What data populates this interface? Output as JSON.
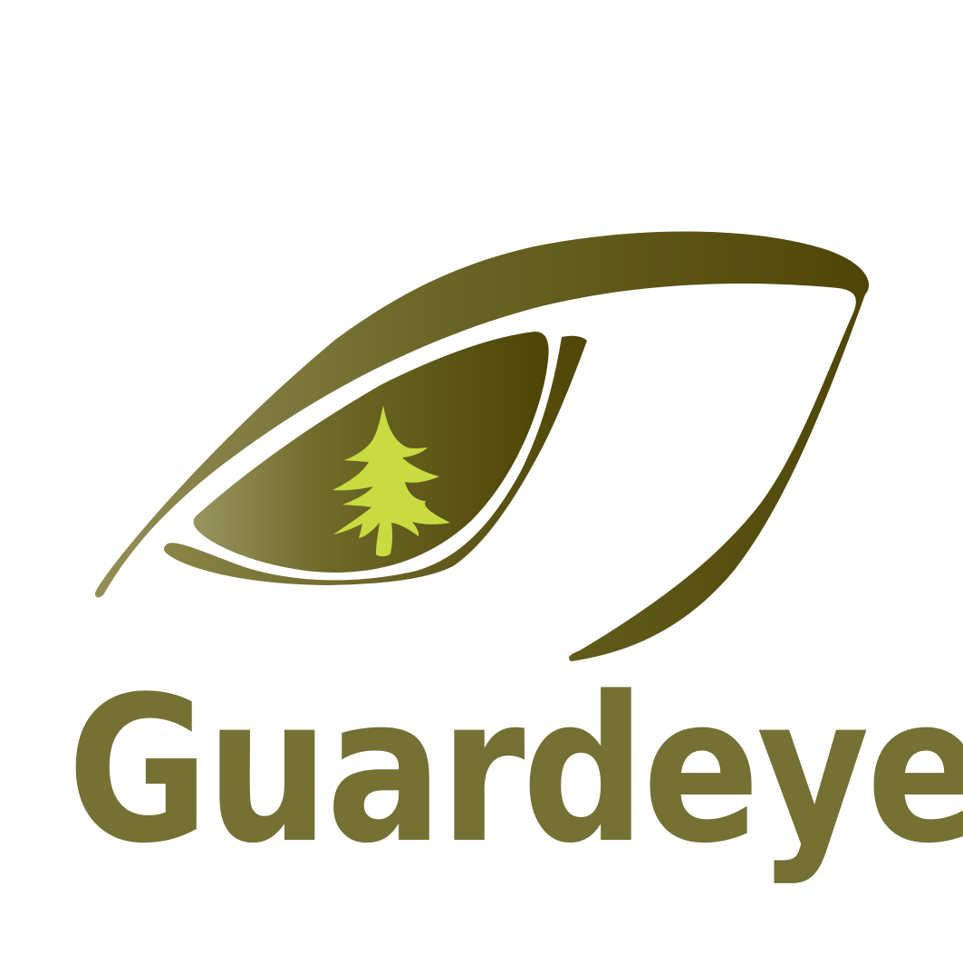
{
  "brand": {
    "name": "Guardeye",
    "text_color": "#757034",
    "colors": {
      "brow_light": "#948f57",
      "brow_dark": "#4e4506",
      "iris_light": "#999460",
      "iris_dark": "#4e4506",
      "tree": "#c8db40"
    }
  },
  "icons": {
    "eye": "eye-icon",
    "tree": "pine-tree-icon"
  }
}
